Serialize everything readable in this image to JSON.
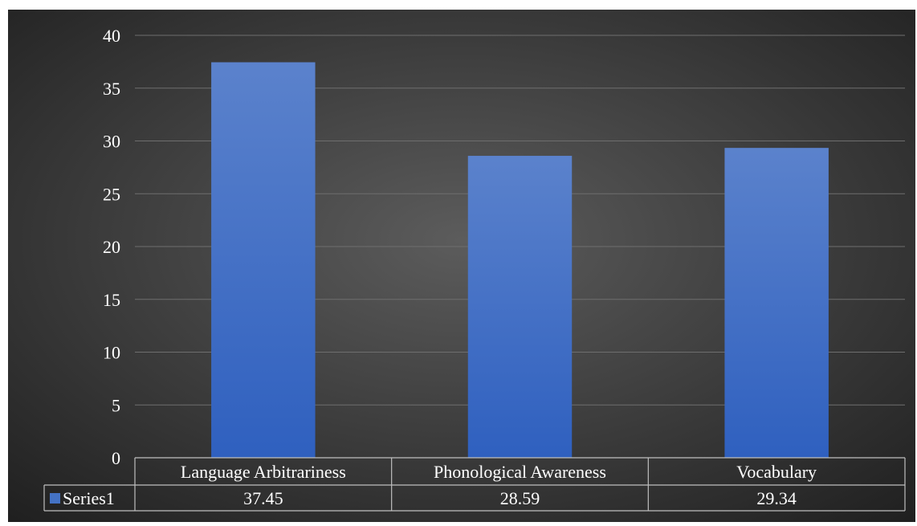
{
  "chart_data": {
    "type": "bar",
    "categories": [
      "Language Arbitrariness",
      "Phonological Awareness",
      "Vocabulary"
    ],
    "series": [
      {
        "name": "Series1",
        "values": [
          37.45,
          28.59,
          29.34
        ]
      }
    ],
    "value_labels": [
      "37.45",
      "28.59",
      "29.34"
    ],
    "ylim": [
      0,
      40
    ],
    "yticks": [
      0,
      5,
      10,
      15,
      20,
      25,
      30,
      35,
      40
    ],
    "grid": true,
    "legend": "data-table",
    "data_table": true
  },
  "colors": {
    "background_center": "#5c5c5c",
    "background_edge": "#1f1f1f",
    "bar_top": "#5b82cc",
    "bar_bottom": "#2f60bf",
    "gridline": "#6e6e6e",
    "text": "#ffffff",
    "legend_key": "#4472c4"
  }
}
